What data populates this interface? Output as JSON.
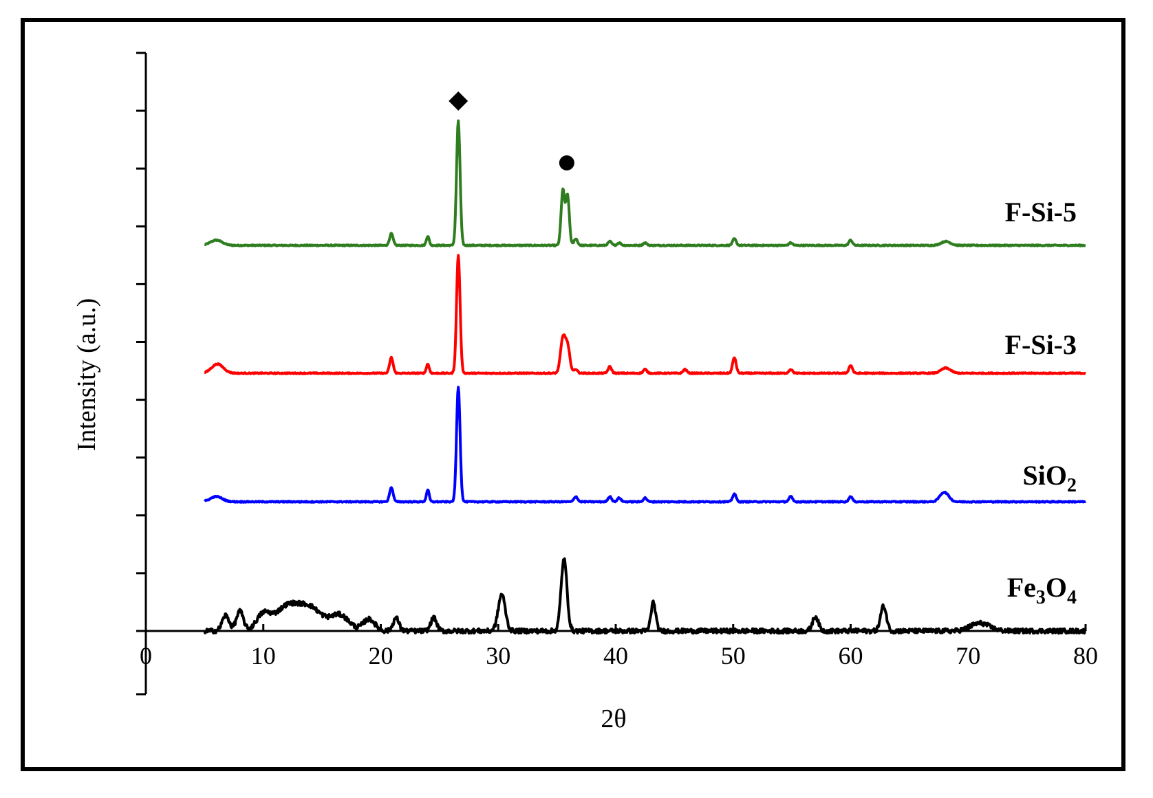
{
  "chart_data": {
    "type": "line",
    "title": "",
    "xlabel": "2θ",
    "ylabel": "Intensity (a.u.)",
    "xlim": [
      0,
      80
    ],
    "x_ticks": [
      "0",
      "10",
      "20",
      "30",
      "40",
      "50",
      "60",
      "70",
      "80"
    ],
    "grid": false,
    "legend": "none",
    "markers": [
      {
        "symbol": "diamond",
        "x": 26.6,
        "series": "F-Si-5"
      },
      {
        "symbol": "circle",
        "x": 35.6,
        "series": "F-Si-5"
      }
    ],
    "series": [
      {
        "name": "F-Si-5",
        "color": "#2e7d1e",
        "offset": 3,
        "peaks": [
          [
            6.0,
            0.04,
            0.5
          ],
          [
            20.9,
            0.09,
            0.15
          ],
          [
            24.0,
            0.07,
            0.12
          ],
          [
            26.6,
            0.95,
            0.15
          ],
          [
            35.5,
            0.42,
            0.15
          ],
          [
            35.9,
            0.38,
            0.15
          ],
          [
            36.6,
            0.05,
            0.15
          ],
          [
            39.5,
            0.03,
            0.15
          ],
          [
            40.3,
            0.02,
            0.15
          ],
          [
            42.5,
            0.02,
            0.15
          ],
          [
            50.1,
            0.05,
            0.15
          ],
          [
            54.9,
            0.02,
            0.15
          ],
          [
            60.0,
            0.04,
            0.15
          ],
          [
            68.1,
            0.03,
            0.4
          ]
        ]
      },
      {
        "name": "F-Si-3",
        "color": "#ff0000",
        "offset": 2,
        "peaks": [
          [
            6.1,
            0.07,
            0.5
          ],
          [
            20.9,
            0.12,
            0.15
          ],
          [
            24.0,
            0.07,
            0.12
          ],
          [
            26.6,
            0.9,
            0.15
          ],
          [
            35.5,
            0.26,
            0.2
          ],
          [
            35.9,
            0.2,
            0.2
          ],
          [
            36.6,
            0.03,
            0.15
          ],
          [
            39.5,
            0.05,
            0.15
          ],
          [
            42.5,
            0.03,
            0.15
          ],
          [
            45.9,
            0.03,
            0.15
          ],
          [
            50.1,
            0.12,
            0.15
          ],
          [
            54.9,
            0.03,
            0.15
          ],
          [
            60.0,
            0.06,
            0.15
          ],
          [
            68.1,
            0.04,
            0.4
          ]
        ]
      },
      {
        "name": "SiO2",
        "color": "#0000ff",
        "offset": 1,
        "peaks": [
          [
            6.0,
            0.04,
            0.5
          ],
          [
            20.9,
            0.11,
            0.15
          ],
          [
            24.0,
            0.09,
            0.12
          ],
          [
            26.6,
            0.88,
            0.15
          ],
          [
            36.6,
            0.04,
            0.15
          ],
          [
            39.5,
            0.04,
            0.15
          ],
          [
            40.3,
            0.03,
            0.15
          ],
          [
            42.5,
            0.03,
            0.15
          ],
          [
            50.1,
            0.06,
            0.15
          ],
          [
            54.9,
            0.04,
            0.15
          ],
          [
            60.0,
            0.04,
            0.15
          ],
          [
            67.8,
            0.05,
            0.3
          ],
          [
            68.2,
            0.04,
            0.3
          ]
        ]
      },
      {
        "name": "Fe3O4",
        "color": "#000000",
        "offset": 0,
        "peaks": [
          [
            6.8,
            0.12,
            0.3
          ],
          [
            8.0,
            0.15,
            0.3
          ],
          [
            10.0,
            0.12,
            0.6
          ],
          [
            12.0,
            0.18,
            1.0
          ],
          [
            14.0,
            0.17,
            1.0
          ],
          [
            16.5,
            0.12,
            0.8
          ],
          [
            19.0,
            0.09,
            0.5
          ],
          [
            21.3,
            0.1,
            0.25
          ],
          [
            24.5,
            0.1,
            0.25
          ],
          [
            30.3,
            0.28,
            0.3
          ],
          [
            35.6,
            0.55,
            0.25
          ],
          [
            43.2,
            0.22,
            0.2
          ],
          [
            57.0,
            0.11,
            0.25
          ],
          [
            62.8,
            0.19,
            0.25
          ],
          [
            71.0,
            0.06,
            0.8
          ]
        ]
      }
    ]
  },
  "labels": {
    "fsi5": "F-Si-5",
    "fsi3": "F-Si-3",
    "sio2_main": "SiO",
    "sio2_sub": "2",
    "fe3o4_a": "Fe",
    "fe3o4_sub1": "3",
    "fe3o4_b": "O",
    "fe3o4_sub2": "4"
  }
}
